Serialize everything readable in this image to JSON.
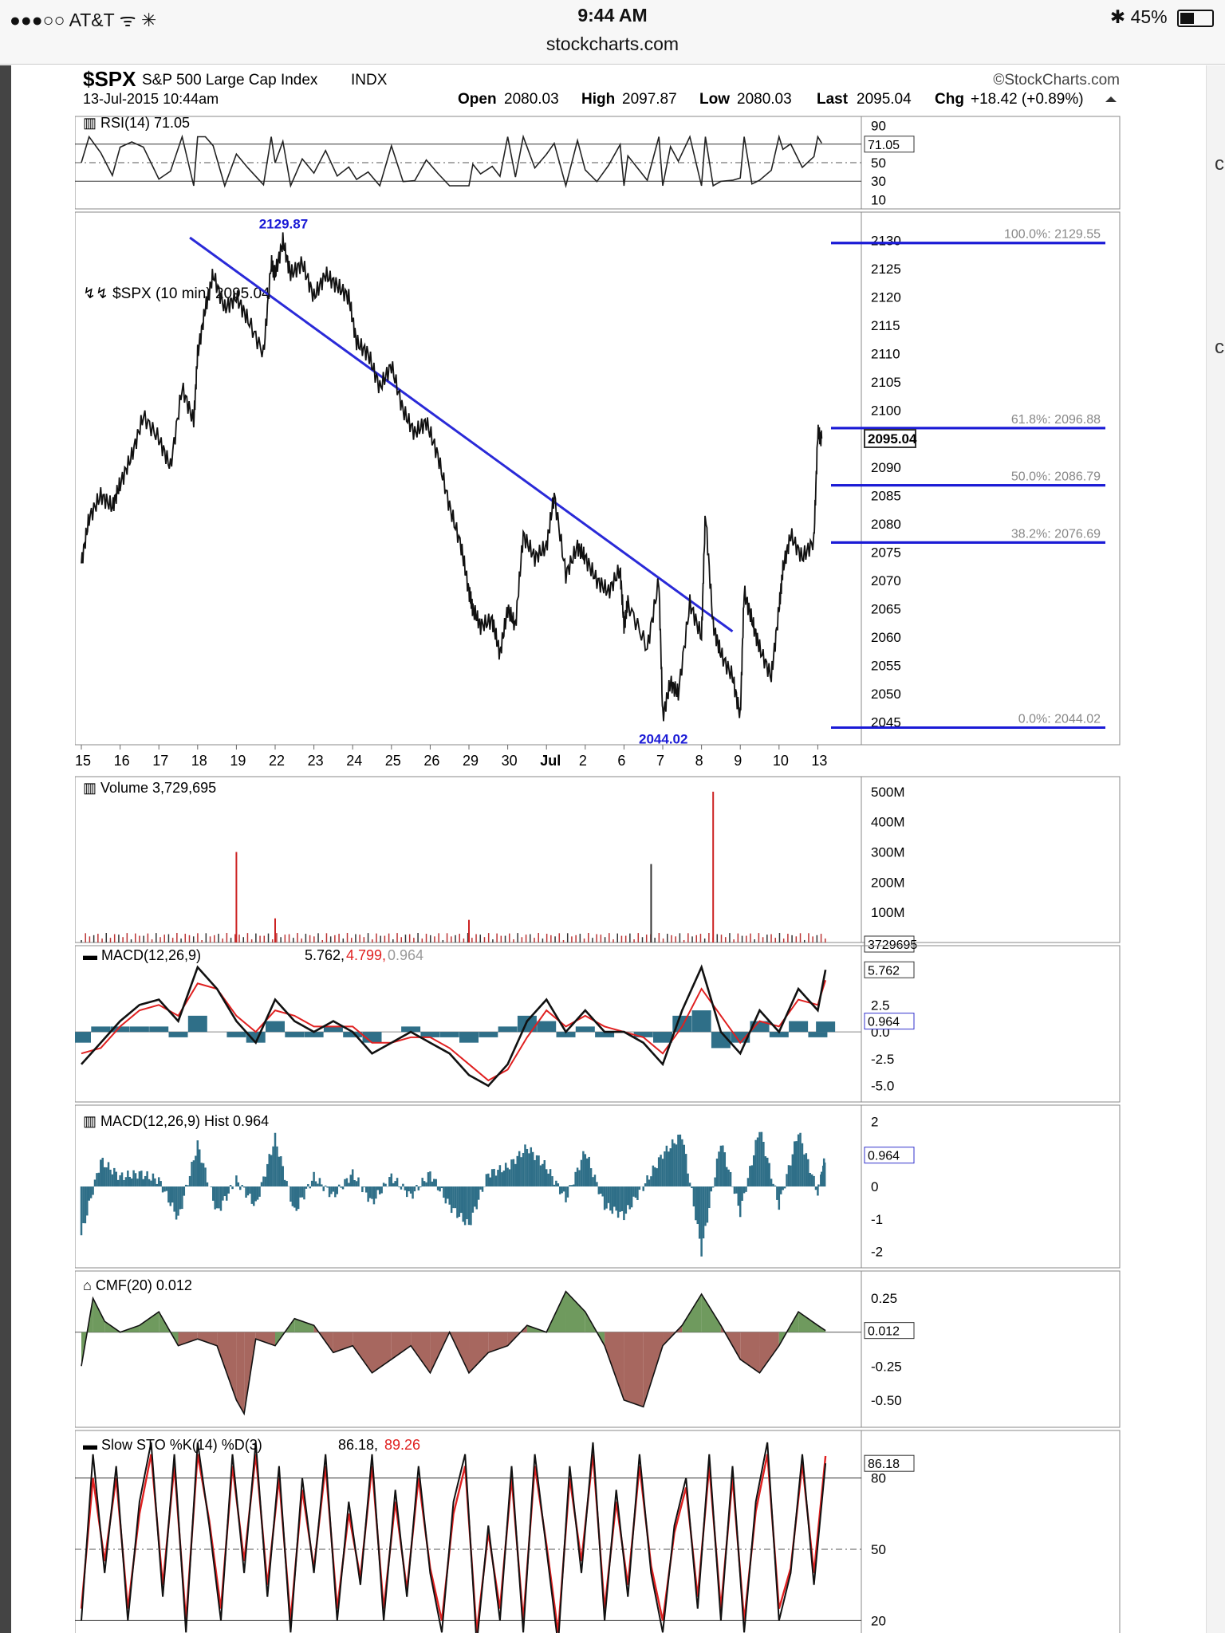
{
  "status_bar": {
    "carrier": "●●●○○ AT&T",
    "time": "9:44 AM",
    "url": "stockcharts.com",
    "battery": "45%",
    "battery_level": 0.45
  },
  "header": {
    "symbol": "$SPX",
    "name": "S&P 500 Large Cap Index",
    "exchange": "INDX",
    "brand": "©StockCharts.com",
    "date": "13-Jul-2015 10:44am",
    "open_label": "Open",
    "open": "2080.03",
    "high_label": "High",
    "high": "2097.87",
    "low_label": "Low",
    "low": "2080.03",
    "last_label": "Last",
    "last": "2095.04",
    "chg_label": "Chg",
    "chg": "+18.42 (+0.89%)"
  },
  "chart_data": [
    {
      "type": "line",
      "panel": "rsi",
      "title": "RSI(14) 71.05",
      "current": "71.05",
      "ylim": [
        0,
        100
      ],
      "ticks": [
        "90",
        "70",
        "50",
        "30",
        "10"
      ],
      "tick_values": [
        90,
        70,
        50,
        30,
        10
      ],
      "reference_lines": [
        70,
        30
      ],
      "dashed_line": 50
    },
    {
      "type": "line",
      "panel": "price",
      "title": "$SPX (10 min) 2095.04",
      "current": "2095.04",
      "ylim": [
        2041,
        2135
      ],
      "ticks": [
        "2130",
        "2125",
        "2120",
        "2115",
        "2110",
        "2105",
        "2100",
        "2095",
        "2090",
        "2085",
        "2080",
        "2075",
        "2070",
        "2065",
        "2060",
        "2055",
        "2050",
        "2045"
      ],
      "tick_values": [
        2130,
        2125,
        2120,
        2115,
        2110,
        2105,
        2100,
        2095,
        2090,
        2085,
        2080,
        2075,
        2070,
        2065,
        2060,
        2055,
        2050,
        2045
      ],
      "x_labels": [
        "15",
        "16",
        "17",
        "18",
        "19",
        "22",
        "23",
        "24",
        "25",
        "26",
        "29",
        "30",
        "Jul",
        "2",
        "6",
        "7",
        "8",
        "9",
        "10",
        "13"
      ],
      "x": [
        0,
        1,
        2,
        3,
        4,
        5,
        6,
        7,
        8,
        9,
        10,
        11,
        12,
        13,
        14,
        15,
        16,
        17,
        18,
        19
      ],
      "high_label": "2129.87",
      "high_value": 2129.87,
      "high_at": 5.2,
      "low_label": "2044.02",
      "low_value": 2044.02,
      "low_at": 15.0,
      "trendline": {
        "x": [
          2.8,
          16.8
        ],
        "y": [
          2130.5,
          2061.0
        ]
      },
      "series": [
        {
          "x": [
            0,
            0.2,
            0.5,
            0.8,
            1.0,
            1.3,
            1.6,
            2.0,
            2.3,
            2.6,
            2.9,
            3.0,
            3.2,
            3.4,
            3.7,
            4.0,
            4.3,
            4.7,
            4.9,
            5.0,
            5.2,
            5.4,
            5.7,
            6.0,
            6.3,
            6.6,
            6.9,
            7.1,
            7.4,
            7.7,
            8.0,
            8.3,
            8.6,
            8.9,
            9.2,
            9.5,
            9.8,
            10.0,
            10.1,
            10.3,
            10.6,
            10.8,
            11.0,
            11.2,
            11.4,
            11.7,
            12.0,
            12.2,
            12.5,
            12.8,
            13.0,
            13.3,
            13.6,
            13.9,
            14.0,
            14.1,
            14.6,
            14.9,
            15.0,
            15.2,
            15.4,
            15.7,
            16.0,
            16.1,
            16.3,
            16.5,
            16.8,
            17.0,
            17.1,
            17.3,
            17.5,
            17.8,
            18.0,
            18.1,
            18.3,
            18.6,
            18.9,
            19.0,
            19.1
          ],
          "y": [
            2073,
            2081,
            2085,
            2083,
            2087,
            2092,
            2099,
            2095,
            2090,
            2104,
            2098,
            2110,
            2118,
            2124,
            2118,
            2120,
            2116,
            2110,
            2126,
            2124,
            2129.87,
            2124,
            2126,
            2120,
            2124,
            2122,
            2120,
            2112,
            2110,
            2104,
            2108,
            2100,
            2096,
            2098,
            2092,
            2083,
            2076,
            2068,
            2065,
            2062,
            2063,
            2057,
            2065,
            2062,
            2078,
            2074,
            2076,
            2085,
            2071,
            2076,
            2074,
            2070,
            2068,
            2072,
            2062,
            2066,
            2058,
            2070,
            2046,
            2052,
            2050,
            2066,
            2060,
            2082,
            2062,
            2057,
            2053,
            2046,
            2068,
            2063,
            2058,
            2053,
            2065,
            2072,
            2078,
            2074,
            2077,
            2096,
            2095.04
          ]
        }
      ],
      "fibonacci": [
        {
          "label": "100.0%: 2129.55",
          "value": 2129.55
        },
        {
          "label": "61.8%: 2096.88",
          "value": 2096.88
        },
        {
          "label": "50.0%: 2086.79",
          "value": 2086.79
        },
        {
          "label": "38.2%: 2076.69",
          "value": 2076.69
        },
        {
          "label": "0.0%: 2044.02",
          "value": 2044.02
        }
      ]
    },
    {
      "type": "bar",
      "panel": "volume",
      "title": "Volume 3,729,695",
      "current": "3729695",
      "ylim": [
        0,
        550
      ],
      "unit": "M",
      "ticks": [
        "500M",
        "400M",
        "300M",
        "200M",
        "100M"
      ],
      "tick_values": [
        500,
        400,
        300,
        200,
        100
      ],
      "spikes": {
        "x": [
          4.0,
          5.0,
          10.0,
          14.7,
          16.3
        ],
        "y": [
          300,
          80,
          75,
          260,
          500
        ]
      }
    },
    {
      "type": "line",
      "panel": "macd",
      "title": "MACD(12,26,9)",
      "macd": "5.762",
      "signal": "4.799",
      "hist": "0.964",
      "ylim": [
        -6.5,
        8
      ],
      "ticks": [
        "2.5",
        "0.0",
        "-2.5",
        "-5.0"
      ],
      "tick_values": [
        2.5,
        0,
        -2.5,
        -5.0
      ],
      "series": [
        {
          "name": "MACD",
          "x": [
            0,
            0.5,
            1,
            1.5,
            2,
            2.5,
            3,
            3.5,
            4,
            4.5,
            5,
            5.5,
            6,
            6.5,
            7,
            7.5,
            8,
            8.5,
            9,
            9.5,
            10,
            10.5,
            11,
            11.5,
            12,
            12.5,
            13,
            13.5,
            14,
            14.5,
            15,
            15.5,
            16,
            16.5,
            17,
            17.5,
            18,
            18.5,
            19,
            19.2
          ],
          "y": [
            -3,
            -1,
            1,
            2.5,
            3,
            1,
            6,
            4,
            1,
            -1,
            3,
            1,
            0,
            1,
            0,
            -2,
            -1,
            0,
            -1,
            -2,
            -4,
            -5,
            -3,
            1,
            3,
            0,
            2,
            0,
            0,
            -1,
            -3,
            2,
            6,
            0,
            -2,
            2,
            0,
            4,
            2,
            5.762
          ]
        },
        {
          "name": "Signal",
          "x": [
            0,
            0.5,
            1,
            1.5,
            2,
            2.5,
            3,
            3.5,
            4,
            4.5,
            5,
            5.5,
            6,
            6.5,
            7,
            7.5,
            8,
            8.5,
            9,
            9.5,
            10,
            10.5,
            11,
            11.5,
            12,
            12.5,
            13,
            13.5,
            14,
            14.5,
            15,
            15.5,
            16,
            16.5,
            17,
            17.5,
            18,
            18.5,
            19,
            19.2
          ],
          "y": [
            -2,
            -1.5,
            0.5,
            2,
            2.5,
            1.5,
            4.5,
            4,
            1.5,
            0,
            2,
            1.5,
            0.5,
            0.5,
            0.5,
            -1,
            -1,
            -0.5,
            -0.5,
            -1.5,
            -3,
            -4.5,
            -3.5,
            -0.5,
            2,
            0.5,
            1.5,
            0.5,
            0,
            -0.5,
            -2,
            0.5,
            4,
            1.5,
            -1,
            1,
            0.5,
            3,
            2.5,
            4.799
          ]
        }
      ]
    },
    {
      "type": "bar",
      "panel": "macd_hist",
      "title": "MACD(12,26,9) Hist 0.964",
      "current": "0.964",
      "ylim": [
        -2.5,
        2.5
      ],
      "ticks": [
        "2",
        "1",
        "0",
        "-1",
        "-2"
      ],
      "tick_values": [
        2,
        1,
        0,
        -1,
        -2
      ],
      "series": [
        {
          "name": "Hist",
          "x": [
            0,
            0.5,
            1,
            1.5,
            2,
            2.5,
            3,
            3.5,
            4,
            4.5,
            5,
            5.5,
            6,
            6.5,
            7,
            7.5,
            8,
            8.5,
            9,
            9.5,
            10,
            10.5,
            11,
            11.5,
            12,
            12.5,
            13,
            13.5,
            14,
            14.5,
            15,
            15.5,
            16,
            16.5,
            17,
            17.5,
            18,
            18.5,
            19,
            19.2
          ],
          "y": [
            -1.5,
            0.8,
            0.3,
            0.4,
            0.2,
            -1,
            1.3,
            -0.8,
            0.2,
            -0.6,
            1.5,
            -0.8,
            0.3,
            -0.3,
            0.4,
            -0.5,
            0.3,
            -0.3,
            0.4,
            -0.6,
            -1.2,
            0.4,
            0.6,
            1.2,
            0.6,
            -0.4,
            1.1,
            -0.6,
            -0.9,
            0,
            1.0,
            1.6,
            -2.0,
            1.4,
            -0.8,
            1.8,
            -0.6,
            1.7,
            -0.2,
            0.964
          ]
        }
      ]
    },
    {
      "type": "area",
      "panel": "cmf",
      "title": "CMF(20) 0.012",
      "current": "0.012",
      "ylim": [
        -0.7,
        0.45
      ],
      "ticks": [
        "0.25",
        "0.00",
        "-0.25",
        "-0.50"
      ],
      "tick_values": [
        0.25,
        0,
        -0.25,
        -0.5
      ],
      "series": [
        {
          "name": "CMF",
          "x": [
            0,
            0.3,
            0.6,
            1,
            1.5,
            2,
            2.5,
            3,
            3.5,
            4,
            4.2,
            4.5,
            5,
            5.5,
            6,
            6.5,
            7,
            7.5,
            8,
            8.5,
            9,
            9.5,
            10,
            10.5,
            11,
            11.5,
            12,
            12.5,
            13,
            13.5,
            14,
            14.5,
            15,
            15.5,
            16,
            16.5,
            17,
            17.5,
            18,
            18.5,
            19,
            19.2
          ],
          "y": [
            -0.25,
            0.25,
            0.08,
            0.0,
            0.05,
            0.15,
            -0.1,
            -0.05,
            -0.1,
            -0.5,
            -0.6,
            -0.05,
            -0.1,
            0.1,
            0.05,
            -0.15,
            -0.1,
            -0.3,
            -0.2,
            -0.1,
            -0.3,
            0.0,
            -0.3,
            -0.15,
            -0.1,
            0.05,
            0.0,
            0.3,
            0.15,
            -0.1,
            -0.5,
            -0.55,
            -0.1,
            0.05,
            0.28,
            0.05,
            -0.2,
            -0.3,
            -0.1,
            0.15,
            0.05,
            0.012
          ]
        }
      ]
    },
    {
      "type": "line",
      "panel": "slow_sto",
      "title": "Slow STO %K(14) %D(3)",
      "k": "86.18",
      "d": "89.26",
      "ylim": [
        0,
        100
      ],
      "ticks": [
        "80",
        "50",
        "20"
      ],
      "tick_values": [
        80,
        50,
        20
      ],
      "x_labels": [
        "15",
        "16",
        "17",
        "18",
        "19",
        "22",
        "23",
        "24",
        "25",
        "26",
        "29",
        "30",
        "Jul",
        "2",
        "6",
        "7",
        "8",
        "9",
        "10",
        "13"
      ],
      "series": [
        {
          "name": "%K",
          "x": [
            0,
            0.3,
            0.6,
            0.9,
            1.2,
            1.5,
            1.8,
            2.1,
            2.4,
            2.7,
            3.0,
            3.3,
            3.6,
            3.9,
            4.2,
            4.5,
            4.8,
            5.1,
            5.4,
            5.7,
            6.0,
            6.3,
            6.6,
            6.9,
            7.2,
            7.5,
            7.8,
            8.1,
            8.4,
            8.7,
            9.0,
            9.3,
            9.6,
            9.9,
            10.2,
            10.5,
            10.8,
            11.1,
            11.4,
            11.7,
            12.0,
            12.3,
            12.6,
            12.9,
            13.2,
            13.5,
            13.8,
            14.1,
            14.4,
            14.7,
            15.0,
            15.3,
            15.6,
            15.9,
            16.2,
            16.5,
            16.8,
            17.1,
            17.4,
            17.7,
            18.0,
            18.3,
            18.6,
            18.9,
            19.2
          ],
          "y": [
            20,
            90,
            40,
            85,
            20,
            70,
            95,
            30,
            90,
            15,
            95,
            60,
            20,
            90,
            40,
            95,
            30,
            85,
            15,
            80,
            40,
            90,
            20,
            70,
            35,
            90,
            20,
            75,
            30,
            85,
            40,
            15,
            70,
            90,
            10,
            60,
            20,
            85,
            15,
            90,
            50,
            10,
            85,
            40,
            95,
            20,
            75,
            30,
            90,
            40,
            15,
            60,
            80,
            25,
            90,
            20,
            85,
            15,
            70,
            95,
            20,
            40,
            90,
            35,
            86.18
          ]
        },
        {
          "name": "%D",
          "x": [
            0,
            0.3,
            0.6,
            0.9,
            1.2,
            1.5,
            1.8,
            2.1,
            2.4,
            2.7,
            3.0,
            3.3,
            3.6,
            3.9,
            4.2,
            4.5,
            4.8,
            5.1,
            5.4,
            5.7,
            6.0,
            6.3,
            6.6,
            6.9,
            7.2,
            7.5,
            7.8,
            8.1,
            8.4,
            8.7,
            9.0,
            9.3,
            9.6,
            9.9,
            10.2,
            10.5,
            10.8,
            11.1,
            11.4,
            11.7,
            12.0,
            12.3,
            12.6,
            12.9,
            13.2,
            13.5,
            13.8,
            14.1,
            14.4,
            14.7,
            15.0,
            15.3,
            15.6,
            15.9,
            16.2,
            16.5,
            16.8,
            17.1,
            17.4,
            17.7,
            18.0,
            18.3,
            18.6,
            18.9,
            19.2
          ],
          "y": [
            25,
            80,
            45,
            80,
            25,
            65,
            90,
            35,
            85,
            20,
            90,
            62,
            25,
            85,
            45,
            90,
            35,
            80,
            20,
            75,
            42,
            85,
            25,
            65,
            38,
            85,
            25,
            70,
            33,
            80,
            42,
            20,
            65,
            85,
            15,
            57,
            25,
            80,
            20,
            85,
            52,
            15,
            80,
            45,
            90,
            25,
            70,
            35,
            85,
            43,
            20,
            57,
            76,
            30,
            85,
            25,
            80,
            20,
            66,
            90,
            25,
            42,
            86,
            40,
            89.26
          ]
        }
      ]
    }
  ]
}
